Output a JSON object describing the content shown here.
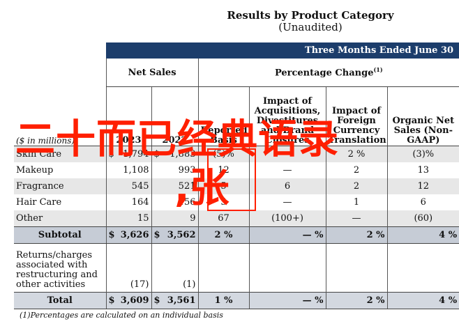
{
  "title": "Results by Product Category",
  "subtitle": "(Unaudited)",
  "period": "Three Months Ended June 30",
  "groups": {
    "net_sales": "Net Sales",
    "pct_change": "Percentage Change",
    "pct_change_note": "(1)"
  },
  "columns": {
    "unit": "($ in millions)",
    "y2023": "2023",
    "y2022": "2022",
    "reported": "Reported Basis",
    "acq": "Impact of Acquisitions, Divestitures and Brand Closures",
    "fx": "Impact of Foreign Currency Translation",
    "organic": "Organic Net Sales (Non-GAAP)"
  },
  "rows": [
    {
      "label": "Skin Care",
      "y2023": "1,794",
      "y2022": "1,883",
      "rep": "(5)%",
      "acq": "—",
      "fx": "2 %",
      "org": "(3)%"
    },
    {
      "label": "Makeup",
      "y2023": "1,108",
      "y2022": "993",
      "rep": "12",
      "acq": "—",
      "fx": "2",
      "org": "13"
    },
    {
      "label": "Fragrance",
      "y2023": "545",
      "y2022": "521",
      "rep": "5",
      "acq": "6",
      "fx": "2",
      "org": "12"
    },
    {
      "label": "Hair Care",
      "y2023": "164",
      "y2022": "156",
      "rep": "5",
      "acq": "—",
      "fx": "1",
      "org": "6"
    },
    {
      "label": "Other",
      "y2023": "15",
      "y2022": "9",
      "rep": "67",
      "acq": "(100+)",
      "fx": "—",
      "org": "(60)"
    }
  ],
  "subtotal": {
    "label": "Subtotal",
    "cur": "$",
    "y2023": "3,626",
    "y2022": "3,562",
    "rep": "2 %",
    "acq": "— %",
    "fx": "2 %",
    "org": "4 %"
  },
  "returns": {
    "label": "Returns/charges associated with restructuring and other activities",
    "y2023": "(17)",
    "y2022": "(1)"
  },
  "total": {
    "label": "Total",
    "cur": "$",
    "y2023": "3,609",
    "y2022": "3,561",
    "rep": "1 %",
    "acq": "— %",
    "fx": "2 %",
    "org": "4 %"
  },
  "footnote": "(1)Percentages are calculated on an individual basis",
  "overlay": {
    "watermark": "二十而已经典语录",
    "watermark2": ",张"
  },
  "colors": {
    "header_bar": "#1c3d6b",
    "band": "#e7e7e7",
    "subtotal": "#c6ccd6",
    "overlay_red": "#ff1f00"
  }
}
